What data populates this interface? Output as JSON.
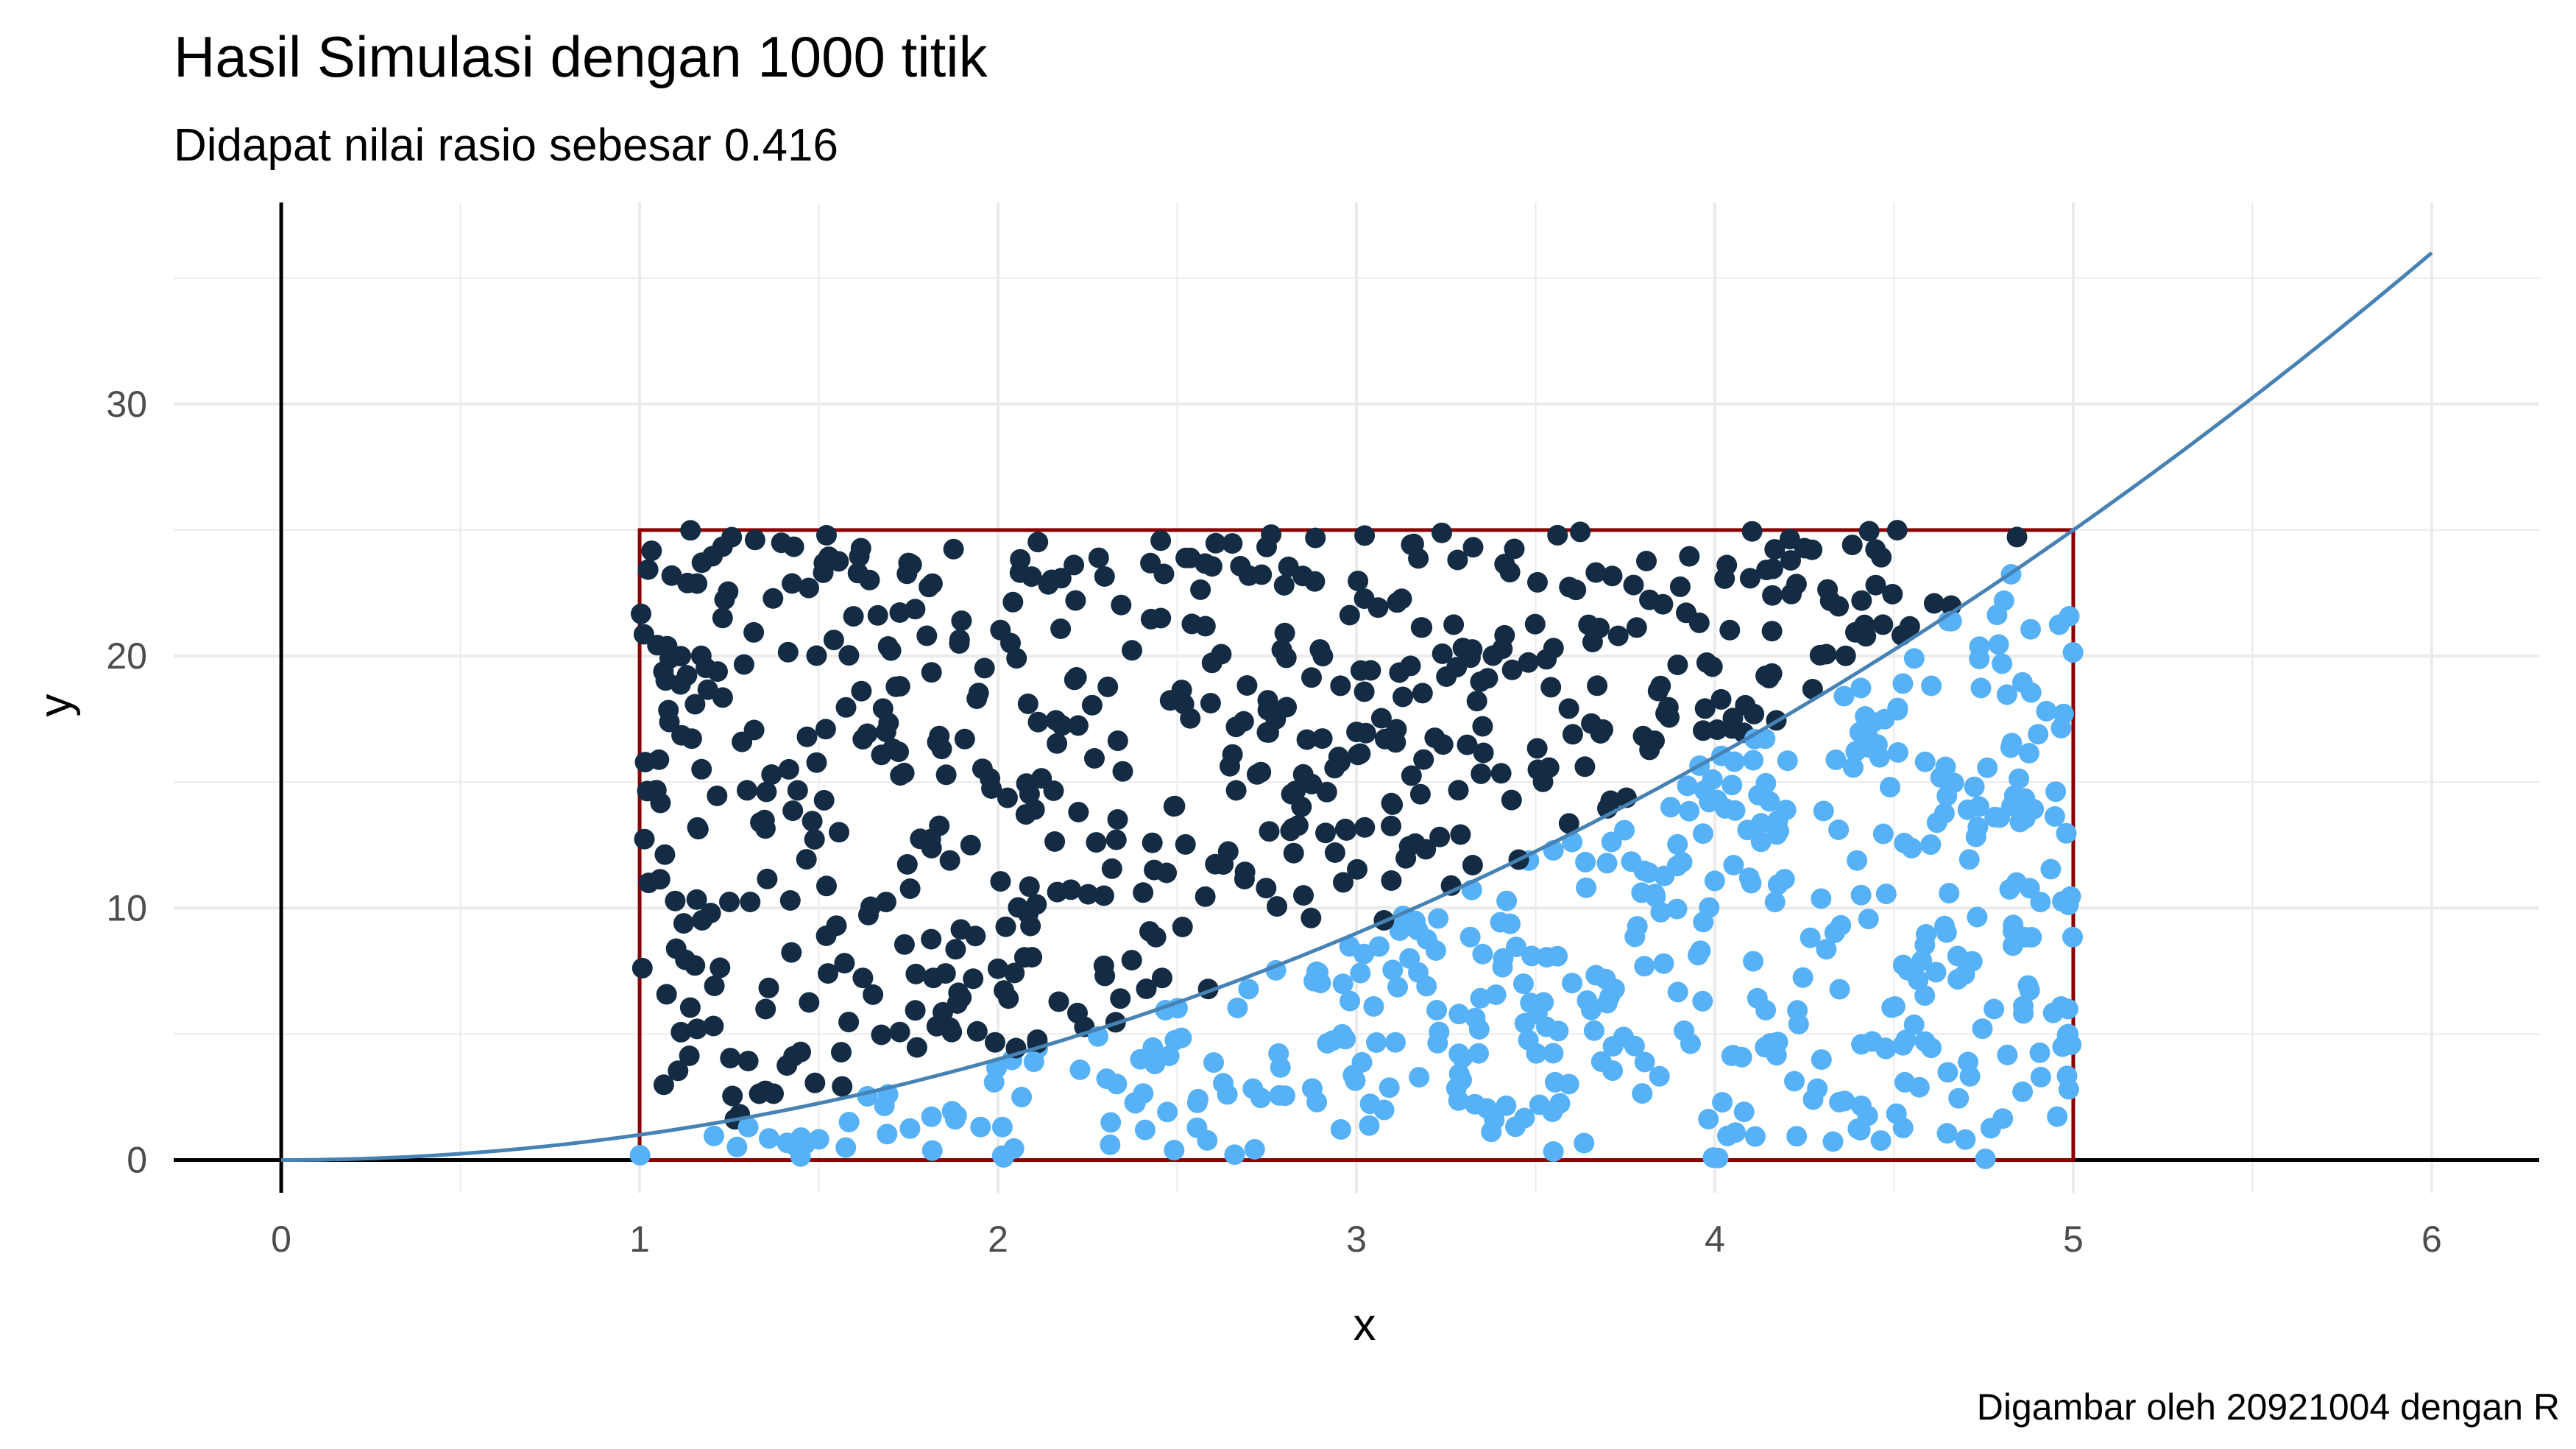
{
  "chart_data": {
    "type": "scatter",
    "title": "Hasil Simulasi dengan 1000 titik",
    "subtitle": "Didapat nilai rasio sebesar 0.416",
    "xlabel": "x",
    "ylabel": "y",
    "caption": "Digambar oleh 20921004 dengan R",
    "xlim": [
      -0.3,
      6.3
    ],
    "ylim": [
      -1.3,
      38
    ],
    "x_ticks": [
      "0",
      "1",
      "2",
      "3",
      "4",
      "5",
      "6"
    ],
    "y_ticks": [
      "0",
      "10",
      "20",
      "30"
    ],
    "grid": true,
    "legend": "none",
    "curve": {
      "function": "y = x^2",
      "x_range": [
        0,
        6
      ],
      "color": "#4682b4"
    },
    "rectangle": {
      "x": [
        1,
        5
      ],
      "y": [
        0,
        25
      ],
      "color": "#8b0000"
    },
    "n_points": 1000,
    "ratio": 0.416,
    "point_colors": {
      "above_curve": "#132b43",
      "below_curve": "#56b1f7"
    }
  }
}
